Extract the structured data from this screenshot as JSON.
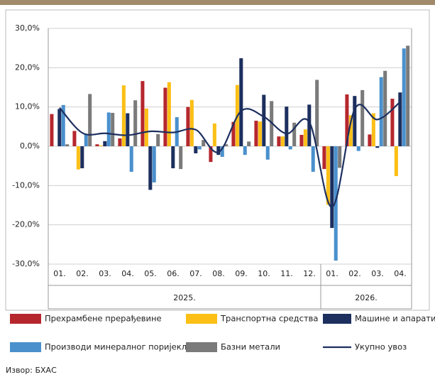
{
  "chart_data": {
    "type": "bar",
    "categories": [
      "01.",
      "02.",
      "03.",
      "04.",
      "05.",
      "06.",
      "07.",
      "08.",
      "09.",
      "10.",
      "11.",
      "12.",
      "01.",
      "02.",
      "03.",
      "04."
    ],
    "x_groups": [
      {
        "label": "2025.",
        "span": 12
      },
      {
        "label": "2026.",
        "span": 4
      }
    ],
    "series": [
      {
        "name": "Прехрамбене прерађевине",
        "color": "#b5272d",
        "values": [
          8.2,
          3.9,
          0.5,
          2.0,
          16.6,
          14.9,
          10.0,
          -4.0,
          6.2,
          6.5,
          2.5,
          2.9,
          -5.8,
          13.2,
          3.0,
          12.1
        ]
      },
      {
        "name": "Транспортна средства",
        "color": "#fbbf16",
        "values": [
          0.0,
          -5.9,
          0.2,
          15.5,
          9.6,
          16.3,
          11.8,
          5.8,
          15.6,
          6.3,
          2.5,
          4.3,
          -14.9,
          7.9,
          8.4,
          -7.6
        ]
      },
      {
        "name": "Машине и апарати",
        "color": "#1c2f5e",
        "values": [
          9.5,
          -5.6,
          1.3,
          8.4,
          -11.1,
          -5.6,
          -1.8,
          -2.2,
          22.4,
          13.1,
          10.1,
          10.6,
          -20.8,
          12.8,
          -0.4,
          13.7
        ]
      },
      {
        "name": "Производи минералног поријекла",
        "color": "#4a90cd",
        "values": [
          10.5,
          3.0,
          8.6,
          -6.5,
          -9.2,
          7.4,
          -0.8,
          -2.7,
          -2.2,
          -3.4,
          -0.8,
          -6.5,
          -29.1,
          -1.2,
          17.6,
          24.9
        ]
      },
      {
        "name": "Базни метали",
        "color": "#7a7a7a",
        "values": [
          0.5,
          13.3,
          8.5,
          11.7,
          3.1,
          -5.8,
          1.6,
          0.5,
          1.2,
          11.5,
          6.0,
          16.9,
          -5.5,
          14.3,
          19.2,
          25.6
        ]
      },
      {
        "name": "Укупно увоз",
        "type": "line",
        "color": "#1c2f5e",
        "values": [
          9.8,
          3.4,
          3.3,
          2.8,
          3.8,
          3.5,
          4.2,
          -1.5,
          9.0,
          7.5,
          3.2,
          6.1,
          -15.5,
          9.5,
          6.8,
          11.3
        ]
      }
    ],
    "ylim": [
      -30,
      30
    ],
    "yticks": [
      {
        "value": -30,
        "label": "-30,0%"
      },
      {
        "value": -20,
        "label": "-20,0%"
      },
      {
        "value": -10,
        "label": "-10,0%"
      },
      {
        "value": 0,
        "label": "0,0%"
      },
      {
        "value": 10,
        "label": "10,0%"
      },
      {
        "value": 20,
        "label": "20,0%"
      },
      {
        "value": 30,
        "label": "30,0%"
      }
    ],
    "grid": true,
    "legend": "bottom",
    "source": "Извор: БХАС"
  }
}
